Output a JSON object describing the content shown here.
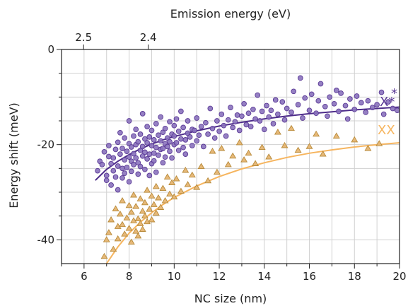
{
  "chart_data": {
    "type": "scatter",
    "xlabel": "NC size (nm)",
    "ylabel": "Energy shift (meV)",
    "top_xlabel": "Emission energy (eV)",
    "xlim": [
      5,
      20
    ],
    "ylim": [
      -45,
      0
    ],
    "x_ticks": [
      6,
      8,
      10,
      12,
      14,
      16,
      18,
      20
    ],
    "y_ticks": [
      0,
      -20,
      -40
    ],
    "top_ticks": [
      {
        "label": "2.5",
        "x": 5.98
      },
      {
        "label": "2.4",
        "x": 8.85
      }
    ],
    "grid": true,
    "series": [
      {
        "name": "X*",
        "marker": "circle",
        "color": "#5b3a96",
        "fill": "#8a72bd",
        "fit_color": "#4e2d8a",
        "fit_x": [
          6.5,
          7,
          7.5,
          8,
          8.5,
          9,
          9.5,
          10,
          11,
          12,
          13,
          14,
          15,
          16,
          17,
          18,
          19,
          20
        ],
        "fit_y": [
          -27.5,
          -25.2,
          -23.5,
          -22.1,
          -20.9,
          -19.9,
          -19.0,
          -18.3,
          -17.1,
          -16.1,
          -15.3,
          -14.6,
          -14.0,
          -13.5,
          -13.1,
          -12.7,
          -12.4,
          -12.1
        ],
        "points": [
          [
            6.6,
            -25.5
          ],
          [
            6.7,
            -23.5
          ],
          [
            6.8,
            -24.2
          ],
          [
            6.9,
            -21.5
          ],
          [
            7.0,
            -26.5
          ],
          [
            7.0,
            -27.5
          ],
          [
            7.1,
            -22.5
          ],
          [
            7.1,
            -20.2
          ],
          [
            7.2,
            -24.0
          ],
          [
            7.2,
            -28.5
          ],
          [
            7.3,
            -22.8
          ],
          [
            7.3,
            -25.5
          ],
          [
            7.4,
            -21.0
          ],
          [
            7.4,
            -26.8
          ],
          [
            7.5,
            -19.5
          ],
          [
            7.5,
            -24.5
          ],
          [
            7.5,
            -29.5
          ],
          [
            7.6,
            -22.0
          ],
          [
            7.6,
            -17.5
          ],
          [
            7.7,
            -25.0
          ],
          [
            7.7,
            -27.0
          ],
          [
            7.7,
            -20.8
          ],
          [
            7.8,
            -23.2
          ],
          [
            7.8,
            -18.6
          ],
          [
            7.8,
            -26.0
          ],
          [
            7.9,
            -21.4
          ],
          [
            7.9,
            -24.8
          ],
          [
            8.0,
            -19.8
          ],
          [
            8.0,
            -22.6
          ],
          [
            8.0,
            -27.8
          ],
          [
            8.0,
            -15.0
          ],
          [
            8.1,
            -23.5
          ],
          [
            8.1,
            -20.5
          ],
          [
            8.1,
            -25.6
          ],
          [
            8.2,
            -18.2
          ],
          [
            8.2,
            -21.9
          ],
          [
            8.2,
            -24.2
          ],
          [
            8.3,
            -20.0
          ],
          [
            8.3,
            -22.8
          ],
          [
            8.3,
            -16.8
          ],
          [
            8.4,
            -23.8
          ],
          [
            8.4,
            -19.4
          ],
          [
            8.4,
            -26.2
          ],
          [
            8.5,
            -21.2
          ],
          [
            8.5,
            -17.8
          ],
          [
            8.5,
            -24.6
          ],
          [
            8.6,
            -20.4
          ],
          [
            8.6,
            -22.4
          ],
          [
            8.6,
            -13.5
          ],
          [
            8.7,
            -18.8
          ],
          [
            8.7,
            -25.2
          ],
          [
            8.7,
            -21.6
          ],
          [
            8.8,
            -19.6
          ],
          [
            8.8,
            -23.0
          ],
          [
            8.8,
            -16.2
          ],
          [
            8.9,
            -22.0
          ],
          [
            8.9,
            -18.4
          ],
          [
            8.9,
            -26.5
          ],
          [
            9.0,
            -20.2
          ],
          [
            9.0,
            -24.0
          ],
          [
            9.0,
            -17.0
          ],
          [
            9.1,
            -21.8
          ],
          [
            9.1,
            -19.0
          ],
          [
            9.1,
            -23.4
          ],
          [
            9.2,
            -20.6
          ],
          [
            9.2,
            -15.6
          ],
          [
            9.2,
            -25.8
          ],
          [
            9.3,
            -18.0
          ],
          [
            9.3,
            -22.2
          ],
          [
            9.4,
            -19.2
          ],
          [
            9.4,
            -21.0
          ],
          [
            9.4,
            -14.2
          ],
          [
            9.5,
            -20.8
          ],
          [
            9.5,
            -17.4
          ],
          [
            9.5,
            -23.8
          ],
          [
            9.6,
            -19.8
          ],
          [
            9.6,
            -16.6
          ],
          [
            9.6,
            -22.6
          ],
          [
            9.7,
            -18.6
          ],
          [
            9.7,
            -20.4
          ],
          [
            9.8,
            -21.4
          ],
          [
            9.8,
            -15.2
          ],
          [
            9.8,
            -19.4
          ],
          [
            9.9,
            -17.8
          ],
          [
            9.9,
            -22.8
          ],
          [
            10.0,
            -18.2
          ],
          [
            10.0,
            -20.0
          ],
          [
            10.0,
            -16.0
          ],
          [
            10.1,
            -19.6
          ],
          [
            10.1,
            -14.6
          ],
          [
            10.2,
            -21.2
          ],
          [
            10.2,
            -17.2
          ],
          [
            10.3,
            -18.8
          ],
          [
            10.3,
            -13.0
          ],
          [
            10.4,
            -20.6
          ],
          [
            10.4,
            -16.4
          ],
          [
            10.5,
            -19.0
          ],
          [
            10.5,
            -22.0
          ],
          [
            10.6,
            -17.6
          ],
          [
            10.6,
            -15.0
          ],
          [
            10.7,
            -18.4
          ],
          [
            10.8,
            -20.2
          ],
          [
            10.8,
            -16.8
          ],
          [
            10.9,
            -17.0
          ],
          [
            11.0,
            -19.2
          ],
          [
            11.0,
            -14.4
          ],
          [
            11.1,
            -18.0
          ],
          [
            11.2,
            -16.2
          ],
          [
            11.3,
            -20.4
          ],
          [
            11.4,
            -15.4
          ],
          [
            11.5,
            -17.8
          ],
          [
            11.6,
            -12.4
          ],
          [
            11.7,
            -16.6
          ],
          [
            11.8,
            -18.6
          ],
          [
            11.9,
            -15.0
          ],
          [
            12.0,
            -17.2
          ],
          [
            12.1,
            -13.6
          ],
          [
            12.2,
            -16.0
          ],
          [
            12.3,
            -18.2
          ],
          [
            12.4,
            -14.8
          ],
          [
            12.5,
            -12.2
          ],
          [
            12.6,
            -16.4
          ],
          [
            12.7,
            -15.2
          ],
          [
            12.8,
            -13.8
          ],
          [
            12.9,
            -17.0
          ],
          [
            13.0,
            -14.0
          ],
          [
            13.1,
            -11.4
          ],
          [
            13.2,
            -15.8
          ],
          [
            13.3,
            -13.4
          ],
          [
            13.4,
            -16.2
          ],
          [
            13.5,
            -12.6
          ],
          [
            13.6,
            -14.6
          ],
          [
            13.7,
            -9.6
          ],
          [
            13.8,
            -15.0
          ],
          [
            13.9,
            -13.0
          ],
          [
            14.0,
            -16.8
          ],
          [
            14.1,
            -11.8
          ],
          [
            14.2,
            -14.2
          ],
          [
            14.3,
            -12.8
          ],
          [
            14.4,
            -15.6
          ],
          [
            14.5,
            -10.6
          ],
          [
            14.6,
            -13.6
          ],
          [
            14.8,
            -11.0
          ],
          [
            14.9,
            -14.8
          ],
          [
            15.0,
            -12.4
          ],
          [
            15.2,
            -13.2
          ],
          [
            15.3,
            -8.8
          ],
          [
            15.5,
            -11.6
          ],
          [
            15.6,
            -6.0
          ],
          [
            15.7,
            -14.4
          ],
          [
            15.8,
            -10.2
          ],
          [
            16.0,
            -12.8
          ],
          [
            16.1,
            -9.4
          ],
          [
            16.3,
            -13.4
          ],
          [
            16.4,
            -10.8
          ],
          [
            16.5,
            -7.2
          ],
          [
            16.7,
            -12.0
          ],
          [
            16.8,
            -14.0
          ],
          [
            16.9,
            -10.0
          ],
          [
            17.1,
            -11.4
          ],
          [
            17.2,
            -8.6
          ],
          [
            17.3,
            -13.0
          ],
          [
            17.4,
            -9.2
          ],
          [
            17.6,
            -11.8
          ],
          [
            17.7,
            -14.6
          ],
          [
            17.8,
            -10.4
          ],
          [
            18.0,
            -12.6
          ],
          [
            18.1,
            -9.8
          ],
          [
            18.3,
            -11.2
          ],
          [
            18.5,
            -13.2
          ],
          [
            18.6,
            -10.8
          ],
          [
            18.8,
            -12.2
          ],
          [
            19.0,
            -11.6
          ],
          [
            19.2,
            -9.0
          ],
          [
            19.3,
            -13.6
          ],
          [
            19.5,
            -11.0
          ],
          [
            19.7,
            -12.4
          ],
          [
            19.9,
            -12.8
          ]
        ]
      },
      {
        "name": "XX",
        "marker": "triangle",
        "color": "#b78a3a",
        "fill": "#e6b878",
        "fit_color": "#f6b55f",
        "fit_x": [
          7,
          7.5,
          8,
          8.5,
          9,
          9.5,
          10,
          11,
          12,
          13,
          14,
          15,
          16,
          17,
          18,
          19,
          20
        ],
        "fit_y": [
          -45,
          -41.5,
          -38.6,
          -36.3,
          -34.3,
          -32.6,
          -31.1,
          -28.7,
          -26.7,
          -25.1,
          -23.8,
          -22.7,
          -21.8,
          -21.1,
          -20.5,
          -20.0,
          -19.6
        ],
        "points": [
          [
            6.9,
            -43.5
          ],
          [
            7.0,
            -40.0
          ],
          [
            7.1,
            -38.5
          ],
          [
            7.2,
            -35.8
          ],
          [
            7.3,
            -42.0
          ],
          [
            7.4,
            -33.5
          ],
          [
            7.5,
            -37.2
          ],
          [
            7.5,
            -39.8
          ],
          [
            7.6,
            -34.6
          ],
          [
            7.7,
            -36.8
          ],
          [
            7.7,
            -31.8
          ],
          [
            7.8,
            -38.8
          ],
          [
            7.9,
            -35.4
          ],
          [
            8.0,
            -37.6
          ],
          [
            8.0,
            -32.8
          ],
          [
            8.1,
            -40.5
          ],
          [
            8.1,
            -34.2
          ],
          [
            8.2,
            -36.0
          ],
          [
            8.2,
            -30.6
          ],
          [
            8.3,
            -38.2
          ],
          [
            8.3,
            -33.0
          ],
          [
            8.4,
            -35.6
          ],
          [
            8.4,
            -39.2
          ],
          [
            8.5,
            -31.4
          ],
          [
            8.5,
            -36.6
          ],
          [
            8.6,
            -34.0
          ],
          [
            8.6,
            -37.8
          ],
          [
            8.7,
            -32.2
          ],
          [
            8.7,
            -35.0
          ],
          [
            8.8,
            -29.6
          ],
          [
            8.8,
            -36.2
          ],
          [
            8.9,
            -33.6
          ],
          [
            9.0,
            -30.8
          ],
          [
            9.0,
            -35.8
          ],
          [
            9.1,
            -32.6
          ],
          [
            9.2,
            -28.8
          ],
          [
            9.2,
            -34.4
          ],
          [
            9.3,
            -31.2
          ],
          [
            9.4,
            -33.2
          ],
          [
            9.5,
            -29.2
          ],
          [
            9.6,
            -31.8
          ],
          [
            9.7,
            -26.8
          ],
          [
            9.8,
            -30.4
          ],
          [
            9.9,
            -28.0
          ],
          [
            10.0,
            -31.0
          ],
          [
            10.1,
            -27.2
          ],
          [
            10.3,
            -29.8
          ],
          [
            10.5,
            -25.4
          ],
          [
            10.6,
            -28.4
          ],
          [
            10.8,
            -26.4
          ],
          [
            11.0,
            -29.0
          ],
          [
            11.2,
            -24.6
          ],
          [
            11.5,
            -27.6
          ],
          [
            11.7,
            -21.4
          ],
          [
            11.9,
            -25.8
          ],
          [
            12.1,
            -20.8
          ],
          [
            12.4,
            -24.2
          ],
          [
            12.6,
            -22.4
          ],
          [
            12.9,
            -19.6
          ],
          [
            13.1,
            -23.2
          ],
          [
            13.3,
            -21.8
          ],
          [
            13.6,
            -24.0
          ],
          [
            13.9,
            -20.6
          ],
          [
            14.2,
            -22.6
          ],
          [
            14.6,
            -17.4
          ],
          [
            14.9,
            -20.2
          ],
          [
            15.2,
            -16.6
          ],
          [
            15.5,
            -21.2
          ],
          [
            16.0,
            -20.4
          ],
          [
            16.3,
            -17.8
          ],
          [
            16.6,
            -22.0
          ],
          [
            17.2,
            -18.2
          ],
          [
            18.0,
            -19.0
          ],
          [
            18.6,
            -20.8
          ],
          [
            19.1,
            -19.8
          ]
        ]
      }
    ]
  }
}
